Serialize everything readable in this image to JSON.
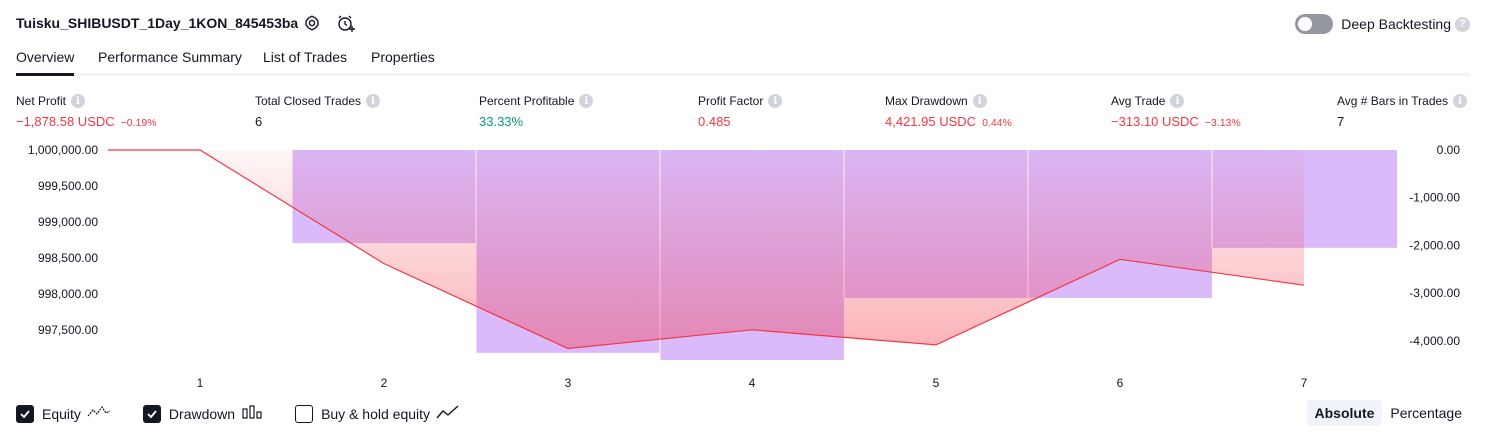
{
  "header": {
    "title": "Tuisku_SHIBUSDT_1Day_1KON_845453ba",
    "settings_icon": "gear-icon",
    "alert_icon": "add-alert-icon",
    "deep_backtesting_label": "Deep Backtesting",
    "deep_backtesting_on": false,
    "help_mark": "?"
  },
  "tabs": [
    {
      "label": "Overview",
      "active": true
    },
    {
      "label": "Performance Summary",
      "active": false
    },
    {
      "label": "List of Trades",
      "active": false
    },
    {
      "label": "Properties",
      "active": false
    }
  ],
  "stats": [
    {
      "label": "Net Profit",
      "value": "−1,878.58 USDC",
      "sub": "−0.19%",
      "tone": "neg"
    },
    {
      "label": "Total Closed Trades",
      "value": "6",
      "sub": "",
      "tone": "neu"
    },
    {
      "label": "Percent Profitable",
      "value": "33.33%",
      "sub": "",
      "tone": "pos"
    },
    {
      "label": "Profit Factor",
      "value": "0.485",
      "sub": "",
      "tone": "neg"
    },
    {
      "label": "Max Drawdown",
      "value": "4,421.95 USDC",
      "sub": "0.44%",
      "tone": "neg"
    },
    {
      "label": "Avg Trade",
      "value": "−313.10 USDC",
      "sub": "−3.13%",
      "tone": "neg"
    },
    {
      "label": "Avg # Bars in Trades",
      "value": "7",
      "sub": "",
      "tone": "neu"
    }
  ],
  "info_mark": "i",
  "chart_data": {
    "type": "line",
    "x": [
      1,
      2,
      3,
      4,
      5,
      6,
      7
    ],
    "equity_series": {
      "values": [
        1000000,
        998420,
        997240,
        997500,
        997290,
        998480,
        998120
      ],
      "color": "#f23645"
    },
    "drawdown_series": {
      "values": [
        0,
        -1950,
        -4250,
        -4400,
        -3100,
        -3100,
        -2050
      ],
      "color": "#d7b4fb"
    },
    "left_axis": {
      "ticks": [
        1000000,
        999500,
        999000,
        998500,
        998000,
        997500
      ],
      "tick_labels": [
        "1,000,000.00",
        "999,500.00",
        "999,000.00",
        "998,500.00",
        "998,000.00",
        "997,500.00"
      ],
      "range": [
        997080,
        1000000
      ]
    },
    "right_axis": {
      "ticks": [
        0,
        -1000,
        -2000,
        -3000,
        -4000
      ],
      "tick_labels": [
        "0.00",
        "-1,000.00",
        "-2,000.00",
        "-3,000.00",
        "-4,000.00"
      ],
      "range": [
        -4400,
        0
      ]
    },
    "x_tick_labels": [
      "1",
      "2",
      "3",
      "4",
      "5",
      "6",
      "7"
    ],
    "grid": false
  },
  "legend": [
    {
      "label": "Equity",
      "checked": true,
      "icon": "equity-line-icon"
    },
    {
      "label": "Drawdown",
      "checked": true,
      "icon": "drawdown-bars-icon"
    },
    {
      "label": "Buy & hold equity",
      "checked": false,
      "icon": "buy-hold-line-icon"
    }
  ],
  "mode": {
    "absolute_label": "Absolute",
    "percentage_label": "Percentage",
    "active": "absolute"
  }
}
